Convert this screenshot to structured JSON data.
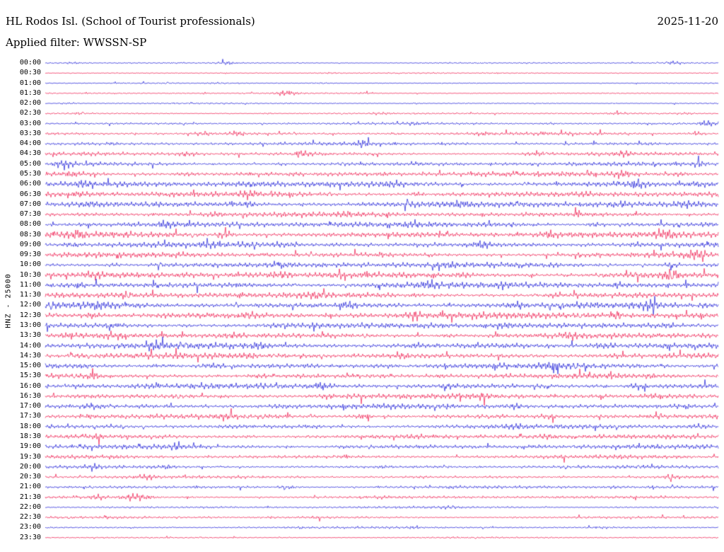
{
  "header": {
    "title": "HL Rodos Isl. (School of Tourist professionals)",
    "date": "2025-11-20",
    "filter": "Applied filter: WWSSN-SP"
  },
  "chart_data": {
    "type": "line",
    "subtype": "helicorder-seismogram",
    "title": "HL Rodos Isl. (School of Tourist professionals)",
    "date": "2025-11-20",
    "filter": "WWSSN-SP",
    "y_axis_label": "HNZ - 25000",
    "channel": "HNZ",
    "scale": 25000,
    "minutes_per_row": 30,
    "rows_start": "00:00",
    "rows_end": "23:30",
    "legend": "alternating trace colors per half-hour line",
    "colors": {
      "blue": "#1616d6",
      "red": "#ee1248"
    },
    "rows": [
      {
        "time": "00:00",
        "color": "blue",
        "amp": 0.9,
        "bursts": [
          [
            0.04,
            2.6
          ],
          [
            0.27,
            2.8
          ],
          [
            0.6,
            1.8
          ],
          [
            0.935,
            3.2
          ]
        ]
      },
      {
        "time": "00:30",
        "color": "red",
        "amp": 0.8,
        "bursts": [
          [
            0.1,
            1.8
          ],
          [
            0.42,
            2.2
          ],
          [
            0.75,
            1.6
          ]
        ]
      },
      {
        "time": "01:00",
        "color": "blue",
        "amp": 0.8,
        "bursts": [
          [
            0.255,
            1.6
          ],
          [
            0.41,
            3.2
          ]
        ]
      },
      {
        "time": "01:30",
        "color": "red",
        "amp": 0.9,
        "bursts": [
          [
            0.355,
            4.0,
            0.016
          ],
          [
            0.47,
            1.8
          ]
        ]
      },
      {
        "time": "02:00",
        "color": "blue",
        "amp": 0.9,
        "bursts": [
          [
            0.033,
            2.8
          ],
          [
            0.55,
            1.5
          ]
        ]
      },
      {
        "time": "02:30",
        "color": "red",
        "amp": 1.1,
        "bursts": [
          [
            0.05,
            2.0
          ],
          [
            0.33,
            2.2
          ],
          [
            0.5,
            1.8
          ],
          [
            0.85,
            1.9
          ],
          [
            0.95,
            2.0
          ]
        ]
      },
      {
        "time": "03:00",
        "color": "blue",
        "amp": 1.5,
        "bursts": [
          [
            0.2,
            1.6
          ],
          [
            0.55,
            1.6
          ],
          [
            0.75,
            1.8
          ],
          [
            0.985,
            3.6,
            0.014
          ]
        ]
      },
      {
        "time": "03:30",
        "color": "red",
        "amp": 1.9,
        "bursts": [
          [
            0.235,
            2.8
          ],
          [
            0.285,
            2.8
          ],
          [
            0.65,
            1.6
          ],
          [
            0.97,
            2.0
          ]
        ]
      },
      {
        "time": "04:00",
        "color": "blue",
        "amp": 2.0,
        "bursts": [
          [
            0.1,
            1.6
          ],
          [
            0.47,
            2.6
          ],
          [
            0.62,
            1.6
          ],
          [
            0.9,
            1.6
          ]
        ]
      },
      {
        "time": "04:30",
        "color": "red",
        "amp": 2.2,
        "bursts": [
          [
            0.21,
            2.4
          ],
          [
            0.38,
            2.8
          ],
          [
            0.73,
            2.4
          ],
          [
            0.86,
            2.0
          ]
        ]
      },
      {
        "time": "05:00",
        "color": "blue",
        "amp": 2.4,
        "bursts": [
          [
            0.03,
            2.0
          ],
          [
            0.35,
            1.6
          ],
          [
            0.55,
            1.6
          ],
          [
            0.97,
            2.0
          ]
        ]
      },
      {
        "time": "05:30",
        "color": "red",
        "amp": 3.0,
        "bursts": [
          [
            0.04,
            2.2
          ],
          [
            0.21,
            2.2
          ],
          [
            0.5,
            1.5
          ],
          [
            0.86,
            2.2
          ],
          [
            0.94,
            1.9
          ]
        ]
      },
      {
        "time": "06:00",
        "color": "blue",
        "amp": 3.4,
        "bursts": [
          [
            0.06,
            1.9
          ],
          [
            0.3,
            1.7
          ],
          [
            0.52,
            1.9
          ],
          [
            0.88,
            2.2
          ],
          [
            0.97,
            1.8
          ]
        ]
      },
      {
        "time": "06:30",
        "color": "red",
        "amp": 3.4,
        "bursts": [
          [
            0.05,
            1.9
          ],
          [
            0.3,
            1.9
          ],
          [
            0.55,
            1.7
          ],
          [
            0.8,
            1.5
          ]
        ]
      },
      {
        "time": "07:00",
        "color": "blue",
        "amp": 3.7,
        "bursts": [
          [
            0.07,
            1.9
          ],
          [
            0.3,
            2.1
          ],
          [
            0.62,
            1.7
          ],
          [
            0.85,
            1.9
          ],
          [
            0.95,
            1.7
          ]
        ]
      },
      {
        "time": "07:30",
        "color": "red",
        "amp": 3.1,
        "bursts": [
          [
            0.25,
            1.7
          ],
          [
            0.45,
            1.5
          ],
          [
            0.8,
            1.7
          ]
        ]
      },
      {
        "time": "08:00",
        "color": "blue",
        "amp": 3.4,
        "bursts": [
          [
            0.18,
            1.9
          ],
          [
            0.55,
            1.5
          ],
          [
            0.82,
            1.9
          ]
        ]
      },
      {
        "time": "08:30",
        "color": "red",
        "amp": 3.7,
        "bursts": [
          [
            0.05,
            1.7
          ],
          [
            0.27,
            2.3
          ],
          [
            0.55,
            1.7
          ],
          [
            0.75,
            1.9
          ],
          [
            0.92,
            1.9
          ]
        ]
      },
      {
        "time": "09:00",
        "color": "blue",
        "amp": 3.4,
        "bursts": [
          [
            0.04,
            1.9
          ],
          [
            0.35,
            1.5
          ],
          [
            0.65,
            1.9
          ],
          [
            0.88,
            1.7
          ]
        ]
      },
      {
        "time": "09:30",
        "color": "red",
        "amp": 3.1,
        "bursts": [
          [
            0.2,
            1.5
          ],
          [
            0.5,
            1.5
          ],
          [
            0.965,
            2.3
          ]
        ]
      },
      {
        "time": "10:00",
        "color": "blue",
        "amp": 3.4,
        "bursts": [
          [
            0.1,
            1.5
          ],
          [
            0.35,
            1.7
          ],
          [
            0.6,
            1.5
          ],
          [
            0.93,
            2.1
          ]
        ]
      },
      {
        "time": "10:30",
        "color": "red",
        "amp": 3.7,
        "bursts": [
          [
            0.07,
            1.7
          ],
          [
            0.35,
            1.9
          ],
          [
            0.62,
            1.7
          ],
          [
            0.93,
            2.3
          ]
        ]
      },
      {
        "time": "11:00",
        "color": "blue",
        "amp": 3.7,
        "bursts": [
          [
            0.05,
            1.7
          ],
          [
            0.3,
            1.7
          ],
          [
            0.57,
            1.9
          ],
          [
            0.85,
            1.7
          ]
        ]
      },
      {
        "time": "11:30",
        "color": "red",
        "amp": 3.4,
        "bursts": [
          [
            0.12,
            1.7
          ],
          [
            0.4,
            1.7
          ],
          [
            0.75,
            1.7
          ]
        ]
      },
      {
        "time": "12:00",
        "color": "blue",
        "amp": 3.7,
        "bursts": [
          [
            0.08,
            1.7
          ],
          [
            0.45,
            1.7
          ],
          [
            0.7,
            1.9
          ],
          [
            0.9,
            1.9
          ]
        ]
      },
      {
        "time": "12:30",
        "color": "red",
        "amp": 4.1,
        "bursts": [
          [
            0.07,
            2.1
          ],
          [
            0.3,
            1.7
          ],
          [
            0.55,
            1.9
          ],
          [
            0.85,
            2.1
          ]
        ]
      },
      {
        "time": "13:00",
        "color": "blue",
        "amp": 3.5,
        "bursts": [
          [
            0.1,
            1.7
          ],
          [
            0.35,
            1.5
          ],
          [
            0.68,
            1.7
          ],
          [
            0.93,
            1.7
          ]
        ]
      },
      {
        "time": "13:30",
        "color": "red",
        "amp": 3.4,
        "bursts": [
          [
            0.1,
            1.7
          ],
          [
            0.28,
            1.9
          ],
          [
            0.6,
            1.7
          ],
          [
            0.78,
            1.7
          ]
        ]
      },
      {
        "time": "14:00",
        "color": "blue",
        "amp": 3.7,
        "bursts": [
          [
            0.16,
            2.1
          ],
          [
            0.32,
            1.7
          ],
          [
            0.55,
            1.7
          ],
          [
            0.83,
            1.9
          ]
        ]
      },
      {
        "time": "14:30",
        "color": "red",
        "amp": 3.4,
        "bursts": [
          [
            0.05,
            1.5
          ],
          [
            0.3,
            1.7
          ],
          [
            0.53,
            1.9
          ],
          [
            0.85,
            1.5
          ]
        ]
      },
      {
        "time": "15:00",
        "color": "blue",
        "amp": 3.3,
        "bursts": [
          [
            0.06,
            1.7
          ],
          [
            0.25,
            1.9
          ],
          [
            0.5,
            1.5
          ],
          [
            0.75,
            1.7
          ]
        ]
      },
      {
        "time": "15:30",
        "color": "red",
        "amp": 3.1,
        "bursts": [
          [
            0.07,
            1.7
          ],
          [
            0.32,
            1.7
          ],
          [
            0.6,
            1.5
          ],
          [
            0.9,
            1.5
          ]
        ]
      },
      {
        "time": "16:00",
        "color": "blue",
        "amp": 3.3,
        "bursts": [
          [
            0.05,
            1.7
          ],
          [
            0.41,
            2.7,
            0.013
          ],
          [
            0.6,
            1.5
          ],
          [
            0.88,
            2.1
          ]
        ]
      },
      {
        "time": "16:30",
        "color": "red",
        "amp": 3.1,
        "bursts": [
          [
            0.06,
            1.7
          ],
          [
            0.42,
            1.7
          ],
          [
            0.65,
            1.9
          ],
          [
            0.9,
            1.5
          ]
        ]
      },
      {
        "time": "17:00",
        "color": "blue",
        "amp": 3.1,
        "bursts": [
          [
            0.07,
            1.9
          ],
          [
            0.35,
            1.5
          ],
          [
            0.7,
            1.9
          ],
          [
            0.95,
            1.7
          ]
        ]
      },
      {
        "time": "17:30",
        "color": "red",
        "amp": 2.9,
        "bursts": [
          [
            0.07,
            1.7
          ],
          [
            0.27,
            1.7
          ],
          [
            0.475,
            2.5
          ],
          [
            0.75,
            1.5
          ]
        ]
      },
      {
        "time": "18:00",
        "color": "blue",
        "amp": 2.7,
        "bursts": [
          [
            0.1,
            1.5
          ],
          [
            0.4,
            1.5
          ],
          [
            0.7,
            1.5
          ],
          [
            0.97,
            1.7
          ]
        ]
      },
      {
        "time": "18:30",
        "color": "red",
        "amp": 2.7,
        "bursts": [
          [
            0.08,
            1.5
          ],
          [
            0.3,
            1.7
          ],
          [
            0.55,
            1.5
          ],
          [
            0.75,
            1.7
          ]
        ]
      },
      {
        "time": "19:00",
        "color": "blue",
        "amp": 2.7,
        "bursts": [
          [
            0.195,
            2.1
          ],
          [
            0.45,
            1.5
          ],
          [
            0.73,
            1.9
          ],
          [
            0.9,
            1.5
          ]
        ]
      },
      {
        "time": "19:30",
        "color": "red",
        "amp": 2.3,
        "bursts": [
          [
            0.1,
            1.5
          ],
          [
            0.45,
            1.5
          ],
          [
            0.85,
            1.5
          ]
        ]
      },
      {
        "time": "20:00",
        "color": "blue",
        "amp": 1.9,
        "bursts": [
          [
            0.07,
            2.2
          ],
          [
            0.18,
            2.0
          ],
          [
            0.5,
            1.5
          ],
          [
            0.9,
            1.7
          ]
        ]
      },
      {
        "time": "20:30",
        "color": "red",
        "amp": 1.8,
        "bursts": [
          [
            0.15,
            2.2
          ],
          [
            0.55,
            1.5
          ],
          [
            0.93,
            2.2
          ]
        ]
      },
      {
        "time": "21:00",
        "color": "blue",
        "amp": 1.8,
        "bursts": [
          [
            0.36,
            2.8,
            0.012
          ],
          [
            0.6,
            1.5
          ],
          [
            0.85,
            1.5
          ]
        ]
      },
      {
        "time": "21:30",
        "color": "red",
        "amp": 1.8,
        "bursts": [
          [
            0.08,
            2.0
          ],
          [
            0.135,
            3.4,
            0.02
          ],
          [
            0.5,
            1.3
          ]
        ]
      },
      {
        "time": "22:00",
        "color": "blue",
        "amp": 1.4,
        "bursts": [
          [
            0.25,
            1.5
          ],
          [
            0.6,
            1.5
          ],
          [
            0.85,
            1.5
          ]
        ]
      },
      {
        "time": "22:30",
        "color": "red",
        "amp": 1.5,
        "bursts": [
          [
            0.1,
            1.5
          ],
          [
            0.4,
            1.8
          ],
          [
            0.7,
            1.5
          ]
        ]
      },
      {
        "time": "23:00",
        "color": "blue",
        "amp": 1.3,
        "bursts": [
          [
            0.3,
            1.5
          ],
          [
            0.55,
            1.8
          ],
          [
            0.83,
            1.5
          ]
        ]
      },
      {
        "time": "23:30",
        "color": "red",
        "amp": 1.0,
        "bursts": [
          [
            0.2,
            1.3
          ],
          [
            0.6,
            1.3
          ]
        ]
      }
    ]
  }
}
